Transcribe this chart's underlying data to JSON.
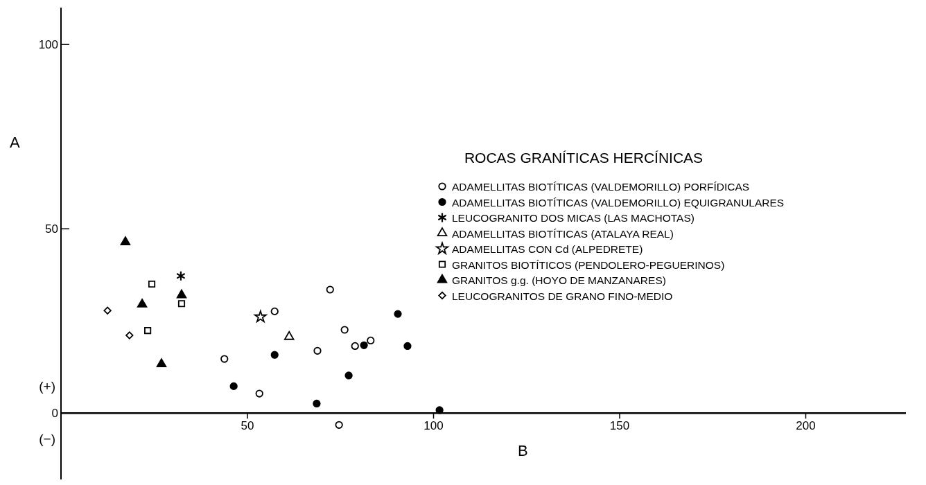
{
  "chart_data": {
    "type": "scatter",
    "xlabel": "B",
    "ylabel": "A",
    "legend_title": "ROCAS GRANÍTICAS HERCÍNICAS",
    "legend": "top right",
    "xlim": [
      0,
      227
    ],
    "ylim": [
      -18,
      110
    ],
    "xticks": [
      50,
      100,
      150,
      200
    ],
    "yticks": [
      0,
      50,
      100
    ],
    "grid": false,
    "annotations": [
      "(+)",
      "(−)"
    ],
    "series": [
      {
        "name": "ADAMELLITAS BIOTÍTICAS (VALDEMORILLO) PORFÍDICAS",
        "color": "#000000",
        "marker": "circle",
        "x": [
          43.9,
          53.3,
          57.4,
          72.3,
          68.9,
          76.2,
          79.0,
          83.2,
          74.7
        ],
        "values": [
          14.7,
          5.3,
          27.6,
          33.5,
          16.9,
          22.6,
          18.2,
          19.7,
          -3.2
        ]
      },
      {
        "name": "ADAMELLITAS BIOTÍTICAS (VALDEMORILLO) EQUIGRANULARES",
        "color": "#000000",
        "marker": "circle",
        "x": [
          46.4,
          57.4,
          68.7,
          77.3,
          81.4,
          90.5,
          93.1,
          101.7
        ],
        "values": [
          7.3,
          15.8,
          2.6,
          10.2,
          18.4,
          26.9,
          18.2,
          0.8
        ]
      },
      {
        "name": "LEUCOGRANITO DOS MICAS (LAS MACHOTAS)",
        "color": "#000000",
        "marker": "cross",
        "x": [
          32.2
        ],
        "values": [
          37.2
        ]
      },
      {
        "name": "ADAMELLITAS BIOTÍTICAS (ATALAYA REAL)",
        "color": "#000000",
        "marker": "triangle",
        "x": [
          61.3
        ],
        "values": [
          20.7
        ]
      },
      {
        "name": "ADAMELLITAS CON Cd (ALPEDRETE)",
        "color": "#000000",
        "marker": "star",
        "x": [
          53.6
        ],
        "values": [
          26.1
        ]
      },
      {
        "name": "GRANITOS BIOTÍTICOS  (PENDOLERO-PEGUERINOS)",
        "color": "#000000",
        "marker": "square",
        "x": [
          24.4,
          32.4,
          23.3
        ],
        "values": [
          35.0,
          29.7,
          22.4
        ]
      },
      {
        "name": "GRANITOS g.g. (HOYO DE MANZANARES)",
        "color": "#000000",
        "marker": "triangle",
        "x": [
          17.3,
          21.8,
          32.4,
          27.0
        ],
        "values": [
          46.4,
          29.5,
          32.0,
          13.3
        ]
      },
      {
        "name": "LEUCOGRANITOS DE GRANO FINO-MEDIO",
        "color": "#000000",
        "marker": "diamond",
        "x": [
          12.5,
          18.4
        ],
        "values": [
          27.8,
          21.1
        ]
      }
    ]
  }
}
